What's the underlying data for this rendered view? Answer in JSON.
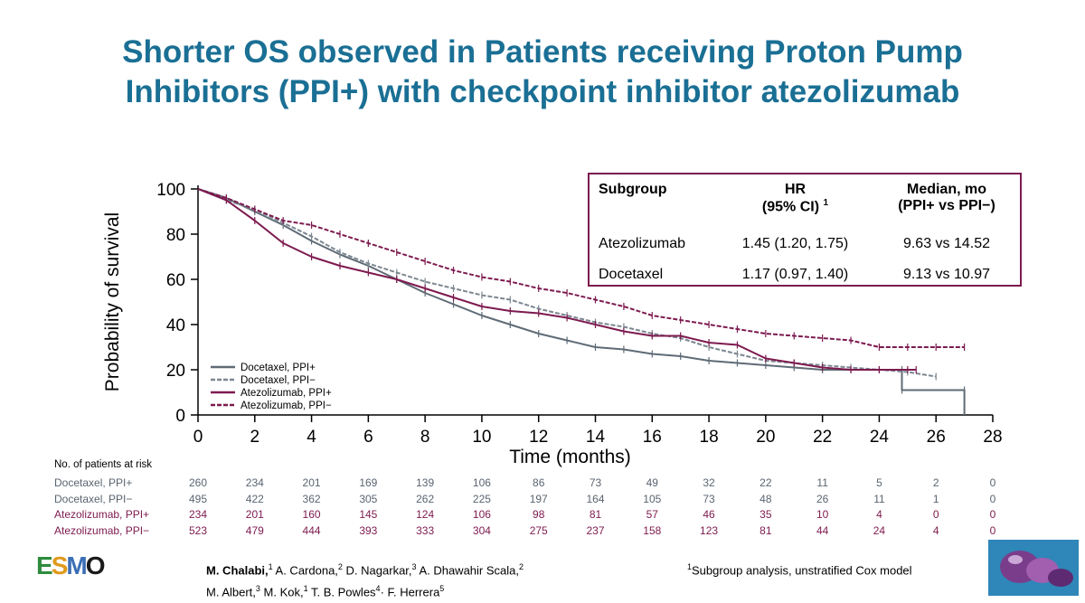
{
  "title": {
    "line1": "Shorter OS observed in Patients receiving Proton Pump",
    "line2": "Inhibitors (PPI+) with checkpoint inhibitor atezolizumab"
  },
  "hr_table": {
    "headers": {
      "subgroup": "Subgroup",
      "hr_line1": "HR",
      "hr_line2": "(95% CI)",
      "hr_sup": "1",
      "median_line1": "Median, mo",
      "median_line2": "(PPI+ vs PPI−)"
    },
    "rows": [
      {
        "subgroup": "Atezolizumab",
        "hr": "1.45 (1.20, 1.75)",
        "median": "9.63 vs 14.52"
      },
      {
        "subgroup": "Docetaxel",
        "hr": "1.17 (0.97, 1.40)",
        "median": "9.13 vs 10.97"
      }
    ]
  },
  "chart_data": {
    "type": "line",
    "subtype": "kaplan-meier",
    "xlabel": "Time (months)",
    "ylabel": "Probability of survival",
    "xlim": [
      0,
      28
    ],
    "ylim": [
      0,
      100
    ],
    "xticks": [
      0,
      2,
      4,
      6,
      8,
      10,
      12,
      14,
      16,
      18,
      20,
      22,
      24,
      26,
      28
    ],
    "yticks": [
      0,
      20,
      40,
      60,
      80,
      100
    ],
    "legend_position": "bottom-left",
    "series": [
      {
        "name": "Docetaxel, PPI+",
        "color": "#5f6b76",
        "dash": false,
        "points": [
          [
            0,
            100
          ],
          [
            1,
            96
          ],
          [
            2,
            90
          ],
          [
            3,
            84
          ],
          [
            4,
            77
          ],
          [
            5,
            71
          ],
          [
            6,
            66
          ],
          [
            7,
            60
          ],
          [
            8,
            54
          ],
          [
            9,
            49
          ],
          [
            10,
            44
          ],
          [
            11,
            40
          ],
          [
            12,
            36
          ],
          [
            13,
            33
          ],
          [
            14,
            30
          ],
          [
            15,
            29
          ],
          [
            16,
            27
          ],
          [
            17,
            26
          ],
          [
            18,
            24
          ],
          [
            19,
            23
          ],
          [
            20,
            22
          ],
          [
            21,
            21
          ],
          [
            22,
            20
          ],
          [
            23,
            20
          ],
          [
            24,
            20
          ],
          [
            24.8,
            20
          ],
          [
            24.8,
            11
          ],
          [
            27,
            11
          ],
          [
            27,
            0
          ]
        ]
      },
      {
        "name": "Docetaxel, PPI−",
        "color": "#7c8791",
        "dash": true,
        "points": [
          [
            0,
            100
          ],
          [
            1,
            95
          ],
          [
            2,
            91
          ],
          [
            3,
            85
          ],
          [
            4,
            79
          ],
          [
            5,
            72
          ],
          [
            6,
            67
          ],
          [
            7,
            63
          ],
          [
            8,
            59
          ],
          [
            9,
            56
          ],
          [
            10,
            53
          ],
          [
            11,
            51
          ],
          [
            12,
            47
          ],
          [
            13,
            44
          ],
          [
            14,
            41
          ],
          [
            15,
            39
          ],
          [
            16,
            36
          ],
          [
            17,
            34
          ],
          [
            18,
            30
          ],
          [
            19,
            27
          ],
          [
            20,
            24
          ],
          [
            21,
            23
          ],
          [
            22,
            22
          ],
          [
            23,
            21
          ],
          [
            24,
            20
          ],
          [
            25,
            19
          ],
          [
            26,
            17
          ]
        ]
      },
      {
        "name": "Atezolizumab, PPI+",
        "color": "#7d1a4f",
        "dash": false,
        "points": [
          [
            0,
            100
          ],
          [
            1,
            95
          ],
          [
            2,
            86
          ],
          [
            3,
            76
          ],
          [
            4,
            70
          ],
          [
            5,
            66
          ],
          [
            6,
            63
          ],
          [
            7,
            60
          ],
          [
            8,
            56
          ],
          [
            9,
            52
          ],
          [
            10,
            48
          ],
          [
            11,
            46
          ],
          [
            12,
            45
          ],
          [
            13,
            43
          ],
          [
            14,
            40
          ],
          [
            15,
            37
          ],
          [
            16,
            35
          ],
          [
            17,
            35
          ],
          [
            18,
            32
          ],
          [
            19,
            31
          ],
          [
            20,
            25
          ],
          [
            21,
            23
          ],
          [
            22,
            21
          ],
          [
            23,
            20
          ],
          [
            24,
            20
          ],
          [
            25,
            20
          ],
          [
            25.3,
            20
          ]
        ]
      },
      {
        "name": "Atezolizumab, PPI−",
        "color": "#7d1a4f",
        "dash": true,
        "points": [
          [
            0,
            100
          ],
          [
            1,
            96
          ],
          [
            2,
            91
          ],
          [
            3,
            86
          ],
          [
            4,
            84
          ],
          [
            5,
            80
          ],
          [
            6,
            76
          ],
          [
            7,
            72
          ],
          [
            8,
            68
          ],
          [
            9,
            64
          ],
          [
            10,
            61
          ],
          [
            11,
            59
          ],
          [
            12,
            56
          ],
          [
            13,
            54
          ],
          [
            14,
            51
          ],
          [
            15,
            48
          ],
          [
            16,
            44
          ],
          [
            17,
            42
          ],
          [
            18,
            40
          ],
          [
            19,
            38
          ],
          [
            20,
            36
          ],
          [
            21,
            35
          ],
          [
            22,
            34
          ],
          [
            23,
            33
          ],
          [
            24,
            30
          ],
          [
            25,
            30
          ],
          [
            26,
            30
          ],
          [
            27,
            30
          ]
        ]
      }
    ]
  },
  "risk_table": {
    "title": "No. of patients at risk",
    "rows": [
      {
        "label": "Docetaxel, PPI+",
        "color": "gray",
        "values": [
          "260",
          "234",
          "201",
          "169",
          "139",
          "106",
          "86",
          "73",
          "49",
          "32",
          "22",
          "11",
          "5",
          "2",
          "0"
        ]
      },
      {
        "label": "Docetaxel, PPI−",
        "color": "gray",
        "values": [
          "495",
          "422",
          "362",
          "305",
          "262",
          "225",
          "197",
          "164",
          "105",
          "73",
          "48",
          "26",
          "11",
          "1",
          "0"
        ]
      },
      {
        "label": "Atezolizumab, PPI+",
        "color": "purple",
        "values": [
          "234",
          "201",
          "160",
          "145",
          "124",
          "106",
          "98",
          "81",
          "57",
          "46",
          "35",
          "10",
          "4",
          "0",
          "0"
        ]
      },
      {
        "label": "Atezolizumab, PPI−",
        "color": "purple",
        "values": [
          "523",
          "479",
          "444",
          "393",
          "333",
          "304",
          "275",
          "237",
          "158",
          "123",
          "81",
          "44",
          "24",
          "4",
          "0"
        ]
      }
    ]
  },
  "footer": {
    "logo_text": "ESMO",
    "authors_line1": [
      {
        "name": "M. Chalabi,",
        "sup": "1",
        "bold": true
      },
      {
        "name": " A. Cardona,",
        "sup": "2"
      },
      {
        "name": " D. Nagarkar,",
        "sup": "3"
      },
      {
        "name": " A. Dhawahir Scala,",
        "sup": "2"
      }
    ],
    "authors_line2": [
      {
        "name": "M. Albert,",
        "sup": "3"
      },
      {
        "name": "  M. Kok,",
        "sup": "1"
      },
      {
        "name": " T. B. Powles",
        "sup": "4"
      },
      {
        "name": "· F. Herrera",
        "sup": "5"
      }
    ],
    "footnote_sup": "1",
    "footnote": "Subgroup analysis, unstratified Cox model"
  }
}
